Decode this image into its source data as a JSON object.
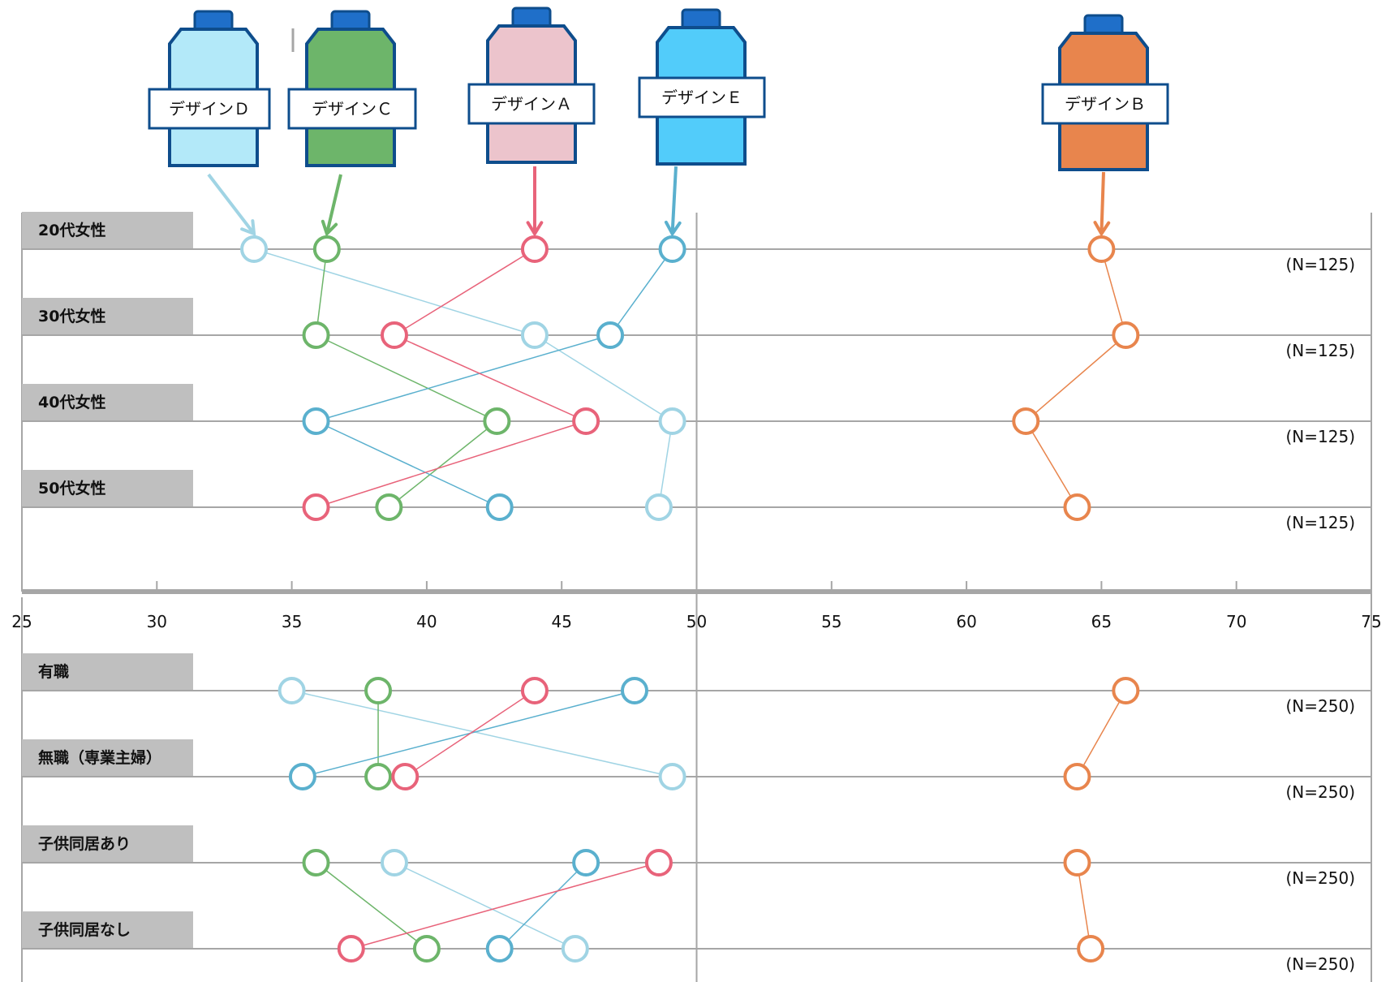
{
  "chart_data": {
    "type": "scatter",
    "xlim": [
      25,
      75
    ],
    "x_ticks": [
      25,
      30,
      35,
      40,
      45,
      50,
      55,
      60,
      65,
      70,
      75
    ],
    "x_tick_labels": [
      "25",
      "30",
      "35",
      "40",
      "45",
      "50",
      "55",
      "60",
      "65",
      "70",
      "75"
    ],
    "grid": "vertical line at 50",
    "series": [
      {
        "name": "デザインA",
        "color": "#E8637A",
        "fill": "#ECC4CC",
        "label": "デザインＡ"
      },
      {
        "name": "デザインB",
        "color": "#E8854D",
        "fill": "#E8854D",
        "label": "デザインＢ"
      },
      {
        "name": "デザインC",
        "color": "#6DB56A",
        "fill": "#6DB56A",
        "label": "デザインＣ"
      },
      {
        "name": "デザインD",
        "color": "#A0D4E4",
        "fill": "#B3E9F9",
        "label": "デザインＤ"
      },
      {
        "name": "デザインE",
        "color": "#5AB0CE",
        "fill": "#52CCFA",
        "label": "デザインＥ"
      }
    ],
    "panels": [
      {
        "rows": [
          {
            "category": "20代女性",
            "n": "(N=125)",
            "values": {
              "A": 44.0,
              "B": 65.0,
              "C": 36.3,
              "D": 33.6,
              "E": 49.1
            }
          },
          {
            "category": "30代女性",
            "n": "(N=125)",
            "values": {
              "A": 38.8,
              "B": 65.9,
              "C": 35.9,
              "D": 44.0,
              "E": 46.8
            }
          },
          {
            "category": "40代女性",
            "n": "(N=125)",
            "values": {
              "A": 45.9,
              "B": 62.2,
              "C": 42.6,
              "D": 49.1,
              "E": 35.9
            }
          },
          {
            "category": "50代女性",
            "n": "(N=125)",
            "values": {
              "A": 35.9,
              "B": 64.1,
              "C": 38.6,
              "D": 48.6,
              "E": 42.7
            }
          }
        ]
      },
      {
        "rows": [
          {
            "category": "有職",
            "n": "(N=250)",
            "values": {
              "A": 44.0,
              "B": 65.9,
              "C": 38.2,
              "D": 35.0,
              "E": 47.7
            }
          },
          {
            "category": "無職（専業主婦）",
            "n": "(N=250)",
            "values": {
              "A": 39.2,
              "B": 64.1,
              "C": 38.2,
              "D": 49.1,
              "E": 35.4
            }
          },
          {
            "category": "子供同居あり",
            "n": "(N=250)",
            "values": {
              "A": 48.6,
              "B": 64.1,
              "C": 35.9,
              "D": 38.8,
              "E": 45.9
            }
          },
          {
            "category": "子供同居なし",
            "n": "(N=250)",
            "values": {
              "A": 37.2,
              "B": 64.6,
              "C": 40.0,
              "D": 45.5,
              "E": 42.7
            }
          }
        ]
      }
    ]
  }
}
